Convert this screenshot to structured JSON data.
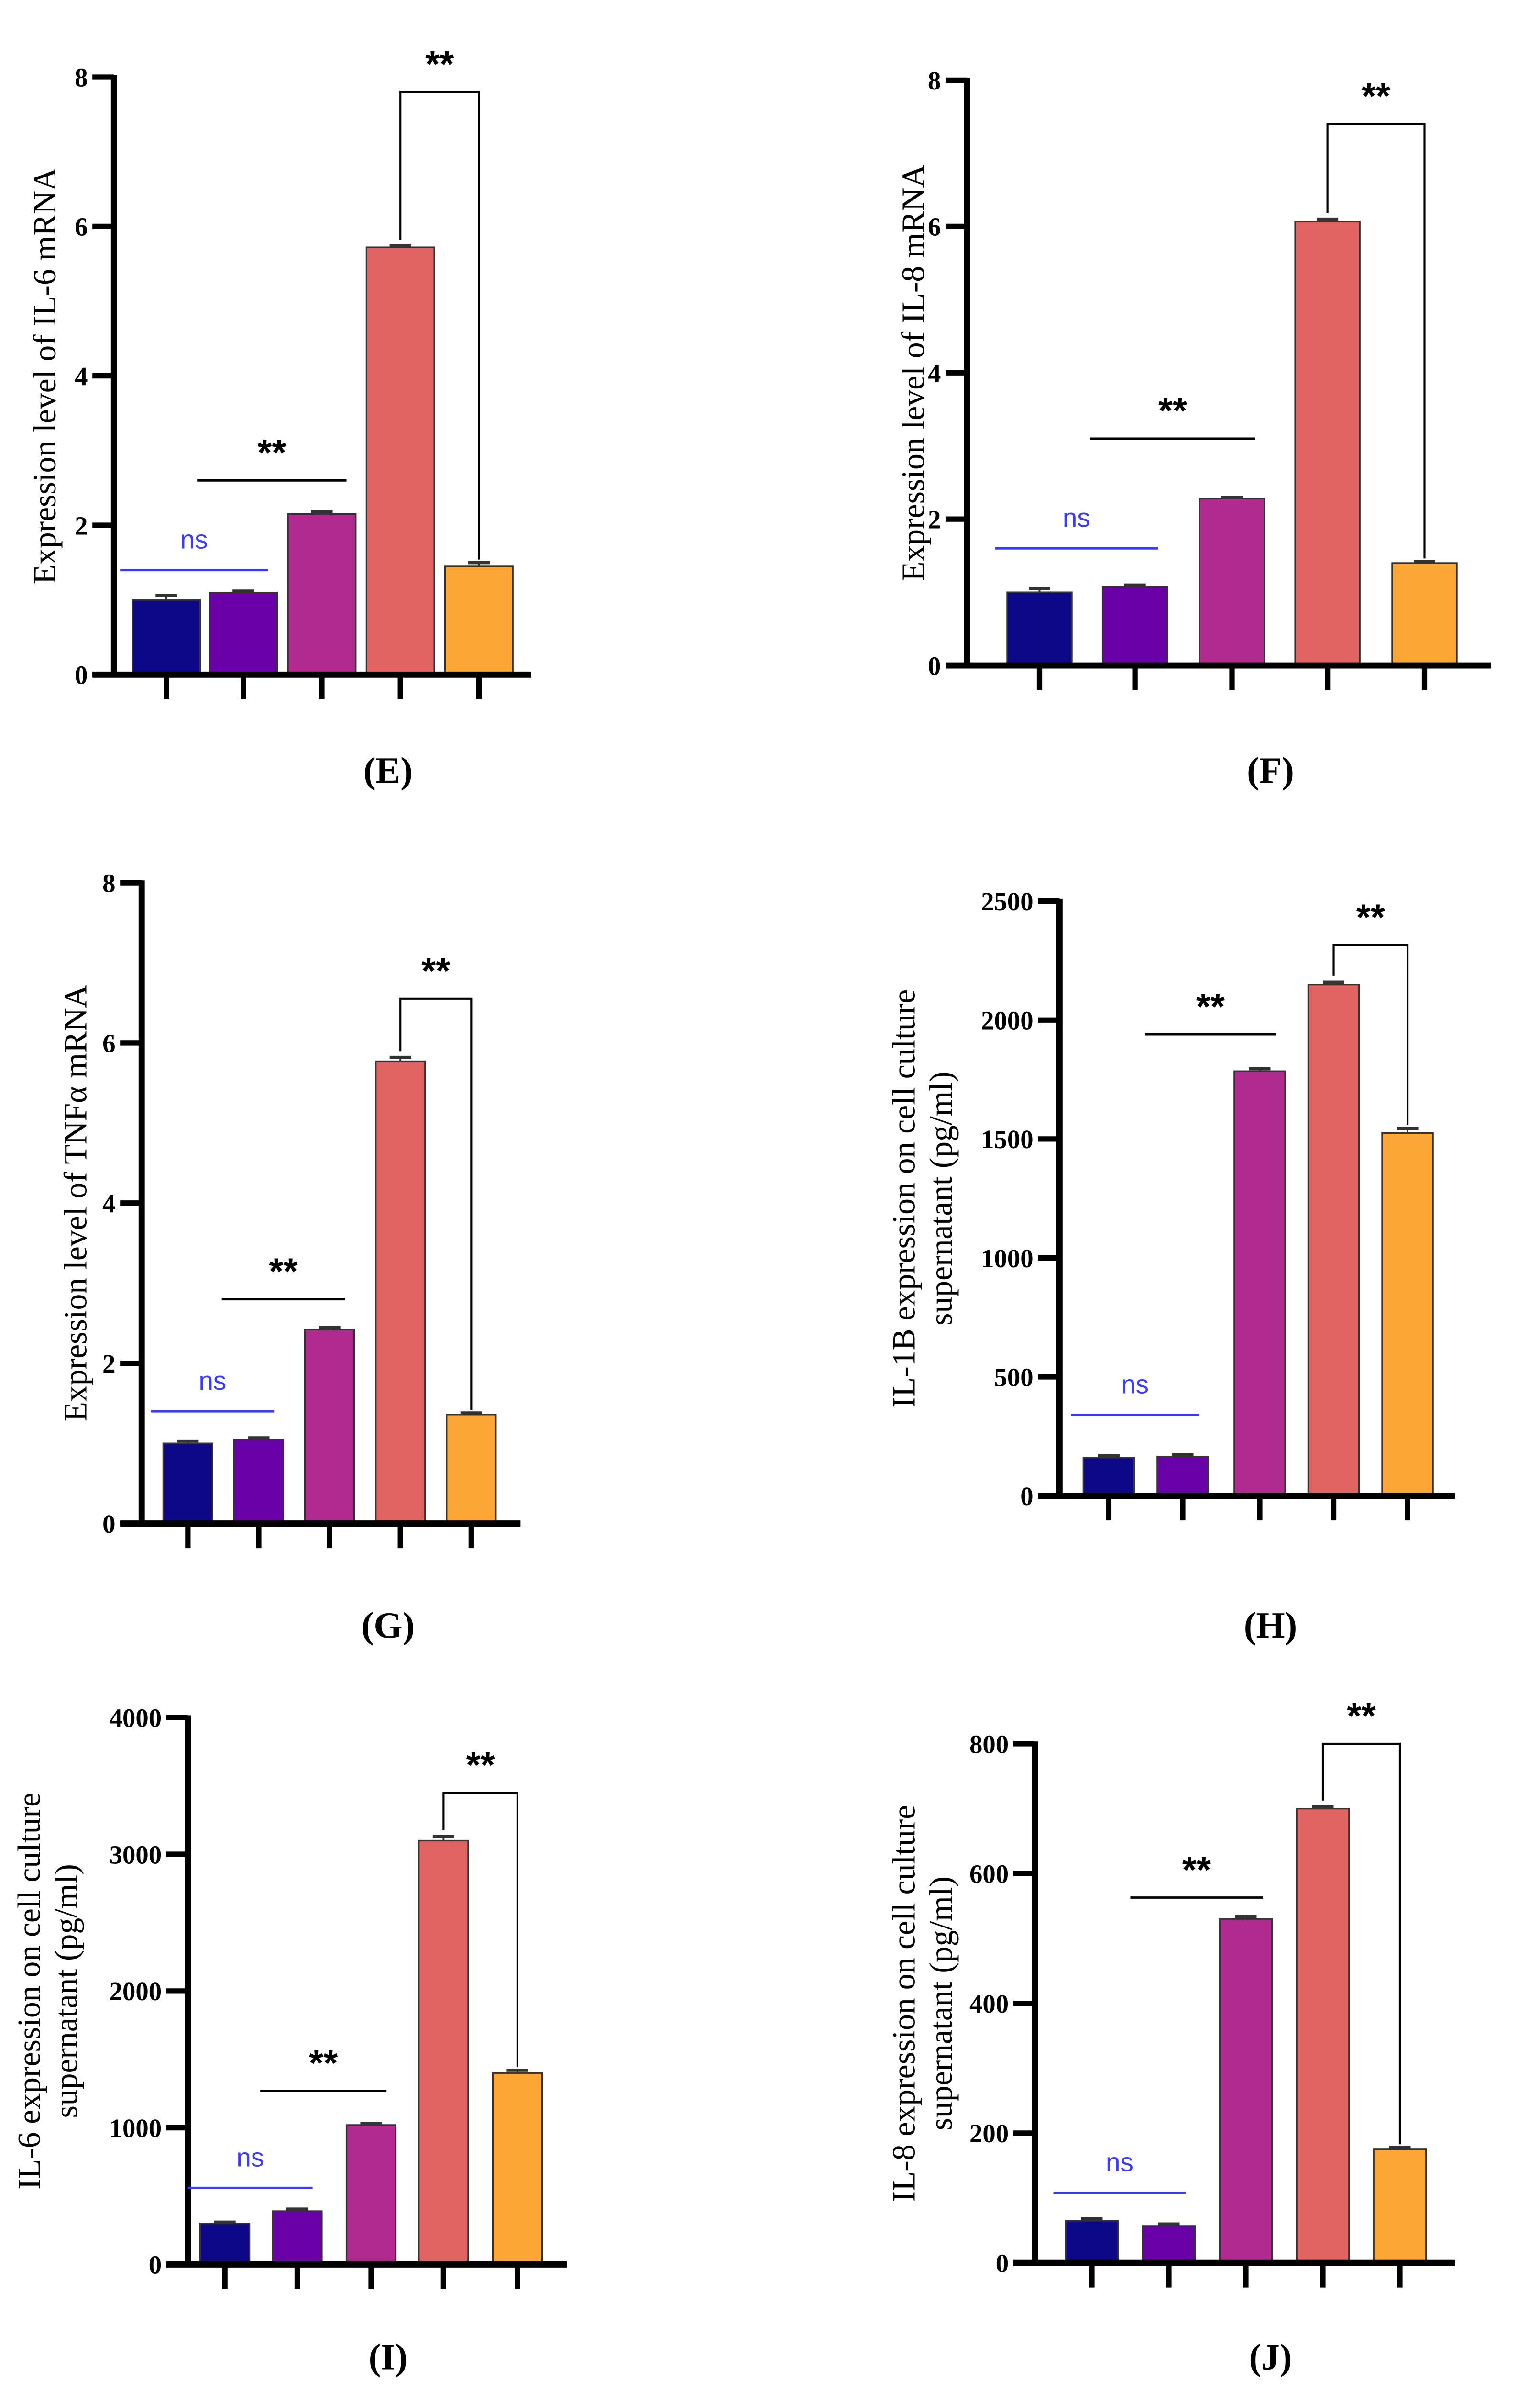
{
  "bar_colors": [
    "#0d0887",
    "#6a00a8",
    "#b12a90",
    "#e16462",
    "#fca636"
  ],
  "ns_color": "#3a3aff",
  "chart_data": [
    {
      "type": "bar",
      "panel": "(E)",
      "ylabel": [
        "Expression level of IL-6  mRNA"
      ],
      "ylim": [
        0,
        8
      ],
      "yticks": [
        "0",
        "2",
        "4",
        "6",
        "8"
      ],
      "ytick_values": [
        0,
        2,
        4,
        6,
        8
      ],
      "values": [
        1.0,
        1.1,
        2.15,
        5.72,
        1.45
      ],
      "errors": [
        0.06,
        0.02,
        0.03,
        0.02,
        0.05
      ],
      "annotations": [
        {
          "label": "ns",
          "from": 0,
          "to": 1,
          "y": 1.4
        },
        {
          "label": "**",
          "from": 1,
          "to": 2,
          "y": 2.6
        },
        {
          "label": "**",
          "from": 3,
          "to": 4,
          "y": 7.8,
          "bracket": true
        }
      ]
    },
    {
      "type": "bar",
      "panel": "(F)",
      "ylabel": [
        "Expression level of IL-8 mRNA"
      ],
      "ylim": [
        0,
        8
      ],
      "yticks": [
        "0",
        "2",
        "4",
        "6",
        "8"
      ],
      "ytick_values": [
        0,
        2,
        4,
        6,
        8
      ],
      "values": [
        1.0,
        1.08,
        2.28,
        6.07,
        1.4
      ],
      "errors": [
        0.05,
        0.02,
        0.02,
        0.03,
        0.02
      ],
      "annotations": [
        {
          "label": "ns",
          "from": 0,
          "to": 1,
          "y": 1.6
        },
        {
          "label": "**",
          "from": 1,
          "to": 2,
          "y": 3.1
        },
        {
          "label": "**",
          "from": 3,
          "to": 4,
          "y": 7.4,
          "bracket": true
        }
      ]
    },
    {
      "type": "bar",
      "panel": "(G)",
      "ylabel": [
        "Expression level of TNFα mRNA"
      ],
      "ylim": [
        0,
        8
      ],
      "yticks": [
        "0",
        "2",
        "4",
        "6",
        "8"
      ],
      "ytick_values": [
        0,
        2,
        4,
        6,
        8
      ],
      "values": [
        1.0,
        1.05,
        2.42,
        5.77,
        1.36
      ],
      "errors": [
        0.03,
        0.02,
        0.03,
        0.05,
        0.02
      ],
      "annotations": [
        {
          "label": "ns",
          "from": 0,
          "to": 1,
          "y": 1.4
        },
        {
          "label": "**",
          "from": 1,
          "to": 2,
          "y": 2.8
        },
        {
          "label": "**",
          "from": 3,
          "to": 4,
          "y": 6.55,
          "bracket": true
        }
      ]
    },
    {
      "type": "bar",
      "panel": "(H)",
      "ylabel": [
        "IL-1B expression on cell culture",
        "supernatant (pg/ml)"
      ],
      "ylim": [
        0,
        2500
      ],
      "yticks": [
        "0",
        "500",
        "1000",
        "1500",
        "2000",
        "2500"
      ],
      "ytick_values": [
        0,
        500,
        1000,
        1500,
        2000,
        2500
      ],
      "values": [
        160,
        165,
        1785,
        2150,
        1525
      ],
      "errors": [
        8,
        8,
        10,
        10,
        20
      ],
      "annotations": [
        {
          "label": "ns",
          "from": 0,
          "to": 1,
          "y": 340
        },
        {
          "label": "**",
          "from": 1,
          "to": 2,
          "y": 1940
        },
        {
          "label": "**",
          "from": 3,
          "to": 4,
          "y": 2315,
          "bracket": true
        }
      ]
    },
    {
      "type": "bar",
      "panel": "(I)",
      "ylabel": [
        "IL-6 expression on cell culture",
        "supernatant (pg/ml)"
      ],
      "ylim": [
        0,
        4000
      ],
      "yticks": [
        "0",
        "1000",
        "2000",
        "3000",
        "4000"
      ],
      "ytick_values": [
        0,
        1000,
        2000,
        3000,
        4000
      ],
      "values": [
        300,
        390,
        1020,
        3100,
        1400
      ],
      "errors": [
        10,
        15,
        10,
        30,
        20
      ],
      "annotations": [
        {
          "label": "ns",
          "from": 0,
          "to": 1,
          "y": 560
        },
        {
          "label": "**",
          "from": 1,
          "to": 2,
          "y": 1270
        },
        {
          "label": "**",
          "from": 3,
          "to": 4,
          "y": 3450,
          "bracket": true
        }
      ]
    },
    {
      "type": "bar",
      "panel": "(J)",
      "ylabel": [
        "IL-8 expression on cell culture",
        "supernatant (pg/ml)"
      ],
      "ylim": [
        0,
        800
      ],
      "yticks": [
        "0",
        "200",
        "400",
        "600",
        "800"
      ],
      "ytick_values": [
        0,
        200,
        400,
        600,
        800
      ],
      "values": [
        65,
        57,
        530,
        700,
        175
      ],
      "errors": [
        3,
        3,
        4,
        3,
        3
      ],
      "annotations": [
        {
          "label": "ns",
          "from": 0,
          "to": 1,
          "y": 108
        },
        {
          "label": "**",
          "from": 1,
          "to": 2,
          "y": 563
        },
        {
          "label": "**",
          "from": 3,
          "to": 4,
          "y": 800,
          "bracket": true
        }
      ]
    }
  ]
}
